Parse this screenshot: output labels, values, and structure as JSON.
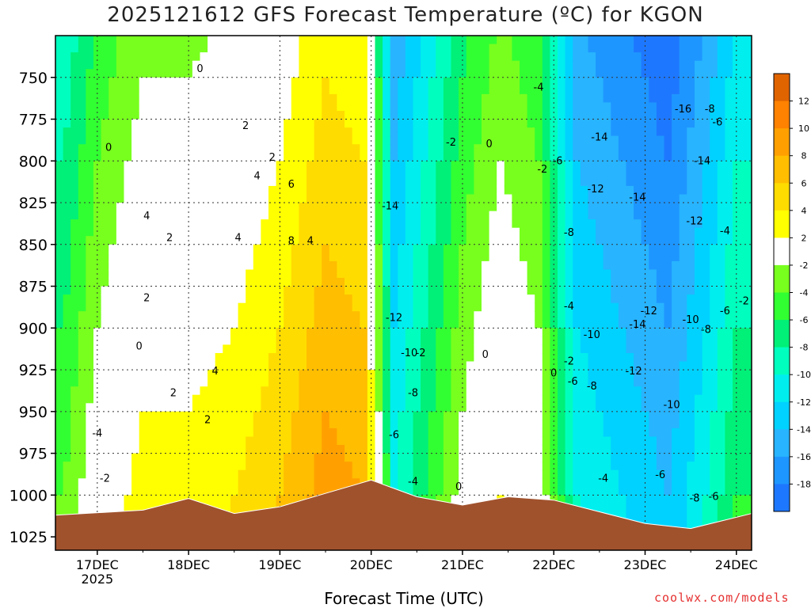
{
  "title": "2025121612 GFS Forecast Temperature (ºC) for KGON",
  "credit": "coolwx.com/models",
  "chart_data": {
    "type": "heatmap",
    "title": "2025121612 GFS Forecast Temperature (ºC) for KGON",
    "xlabel": "Forecast Time (UTC)",
    "ylabel": "",
    "x_ticks": [
      "17DEC",
      "18DEC",
      "19DEC",
      "20DEC",
      "21DEC",
      "22DEC",
      "23DEC",
      "24DEC"
    ],
    "x_year_label": "2025",
    "x_hours": [
      0,
      24,
      48,
      72,
      96,
      120,
      144,
      168
    ],
    "xlim_hours": [
      -11,
      172
    ],
    "y_ticks": [
      750,
      775,
      800,
      825,
      850,
      875,
      900,
      925,
      950,
      975,
      1000,
      1025
    ],
    "ylim": [
      725,
      1033
    ],
    "colorbar": {
      "bounds": [
        -20,
        -18,
        -16,
        -14,
        -12,
        -10,
        -8,
        -6,
        -4,
        -2,
        2,
        4,
        6,
        8,
        10,
        12,
        14
      ],
      "labels": [
        "12",
        "10",
        "8",
        "6",
        "4",
        "2",
        "-2",
        "-4",
        "-6",
        "-8",
        "-10",
        "-12",
        "-14",
        "-16",
        "-18"
      ],
      "colors": [
        "#1e78ff",
        "#1e96ff",
        "#28b4ff",
        "#00d2ff",
        "#00eeee",
        "#00ffbe",
        "#00f078",
        "#32ff32",
        "#78ff1e",
        "#ffffff",
        "#ffff00",
        "#ffdc00",
        "#ffbe00",
        "#ffa000",
        "#ff8200",
        "#e06400"
      ]
    },
    "temperature_profile_by_time": [
      {
        "hour": -9,
        "t": -4
      },
      {
        "hour": 0,
        "t": 0
      },
      {
        "hour": 12,
        "t": 3
      },
      {
        "hour": 24,
        "t": 3
      },
      {
        "hour": 36,
        "t": 4
      },
      {
        "hour": 48,
        "t": 6
      },
      {
        "hour": 60,
        "t": 9
      },
      {
        "hour": 70,
        "t": 8
      },
      {
        "hour": 78,
        "t": -10
      },
      {
        "hour": 86,
        "t": -6
      },
      {
        "hour": 96,
        "t": -1
      },
      {
        "hour": 106,
        "t": 2
      },
      {
        "hour": 116,
        "t": 0
      },
      {
        "hour": 126,
        "t": -10
      },
      {
        "hour": 138,
        "t": -12
      },
      {
        "hour": 150,
        "t": -14
      },
      {
        "hour": 160,
        "t": -10
      },
      {
        "hour": 168,
        "t": -6
      }
    ],
    "contour_labels": [
      {
        "label": "0",
        "hour": 3,
        "p": 792
      },
      {
        "label": "0",
        "hour": 27,
        "p": 745
      },
      {
        "label": "0",
        "hour": 11,
        "p": 911
      },
      {
        "label": "-2",
        "hour": 2,
        "p": 990
      },
      {
        "label": "-4",
        "hour": 0,
        "p": 963
      },
      {
        "label": "4",
        "hour": 13,
        "p": 833
      },
      {
        "label": "2",
        "hour": 19,
        "p": 846
      },
      {
        "label": "2",
        "hour": 13,
        "p": 882
      },
      {
        "label": "2",
        "hour": 39,
        "p": 779
      },
      {
        "label": "2",
        "hour": 46,
        "p": 798
      },
      {
        "label": "4",
        "hour": 42,
        "p": 809
      },
      {
        "label": "6",
        "hour": 51,
        "p": 814
      },
      {
        "label": "4",
        "hour": 37,
        "p": 846
      },
      {
        "label": "8",
        "hour": 51,
        "p": 848
      },
      {
        "label": "4",
        "hour": 56,
        "p": 848
      },
      {
        "label": "4",
        "hour": 31,
        "p": 926
      },
      {
        "label": "2",
        "hour": 20,
        "p": 939
      },
      {
        "label": "2",
        "hour": 29,
        "p": 955
      },
      {
        "label": "-14",
        "hour": 77,
        "p": 827
      },
      {
        "label": "-12",
        "hour": 78,
        "p": 894
      },
      {
        "label": "-10",
        "hour": 82,
        "p": 915
      },
      {
        "label": "-2",
        "hour": 85,
        "p": 915
      },
      {
        "label": "-8",
        "hour": 83,
        "p": 939
      },
      {
        "label": "-6",
        "hour": 78,
        "p": 964
      },
      {
        "label": "-4",
        "hour": 83,
        "p": 992
      },
      {
        "label": "0",
        "hour": 95,
        "p": 995
      },
      {
        "label": "0",
        "hour": 102,
        "p": 916
      },
      {
        "label": "-2",
        "hour": 93,
        "p": 789
      },
      {
        "label": "0",
        "hour": 103,
        "p": 790
      },
      {
        "label": "-4",
        "hour": 116,
        "p": 756
      },
      {
        "label": "-2",
        "hour": 117,
        "p": 805
      },
      {
        "label": "-6",
        "hour": 121,
        "p": 800
      },
      {
        "label": "-14",
        "hour": 132,
        "p": 786
      },
      {
        "label": "-12",
        "hour": 131,
        "p": 817
      },
      {
        "label": "-14",
        "hour": 142,
        "p": 822
      },
      {
        "label": "-8",
        "hour": 124,
        "p": 843
      },
      {
        "label": "-4",
        "hour": 124,
        "p": 887
      },
      {
        "label": "-10",
        "hour": 130,
        "p": 904
      },
      {
        "label": "-2",
        "hour": 124,
        "p": 920
      },
      {
        "label": "0",
        "hour": 120,
        "p": 927
      },
      {
        "label": "-6",
        "hour": 125,
        "p": 932
      },
      {
        "label": "-8",
        "hour": 130,
        "p": 935
      },
      {
        "label": "-14",
        "hour": 142,
        "p": 898
      },
      {
        "label": "-12",
        "hour": 145,
        "p": 890
      },
      {
        "label": "-12",
        "hour": 141,
        "p": 926
      },
      {
        "label": "-10",
        "hour": 151,
        "p": 946
      },
      {
        "label": "-4",
        "hour": 133,
        "p": 990
      },
      {
        "label": "-6",
        "hour": 148,
        "p": 988
      },
      {
        "label": "-16",
        "hour": 154,
        "p": 769
      },
      {
        "label": "-8",
        "hour": 161,
        "p": 769
      },
      {
        "label": "-6",
        "hour": 163,
        "p": 777
      },
      {
        "label": "-14",
        "hour": 159,
        "p": 800
      },
      {
        "label": "-12",
        "hour": 157,
        "p": 836
      },
      {
        "label": "-4",
        "hour": 165,
        "p": 842
      },
      {
        "label": "-10",
        "hour": 156,
        "p": 895
      },
      {
        "label": "-8",
        "hour": 160,
        "p": 901
      },
      {
        "label": "-6",
        "hour": 165,
        "p": 890
      },
      {
        "label": "-2",
        "hour": 170,
        "p": 884
      },
      {
        "label": "-8",
        "hour": 157,
        "p": 1002
      },
      {
        "label": "-6",
        "hour": 162,
        "p": 1001
      }
    ],
    "terrain_color": "#a0522d",
    "terrain_surface_pressure_by_time": [
      {
        "hour": -11,
        "p": 1012
      },
      {
        "hour": 12,
        "p": 1009
      },
      {
        "hour": 24,
        "p": 1002
      },
      {
        "hour": 36,
        "p": 1011
      },
      {
        "hour": 48,
        "p": 1007
      },
      {
        "hour": 60,
        "p": 999
      },
      {
        "hour": 72,
        "p": 991
      },
      {
        "hour": 84,
        "p": 1001
      },
      {
        "hour": 96,
        "p": 1006
      },
      {
        "hour": 108,
        "p": 1001
      },
      {
        "hour": 120,
        "p": 1003
      },
      {
        "hour": 132,
        "p": 1010
      },
      {
        "hour": 144,
        "p": 1017
      },
      {
        "hour": 156,
        "p": 1020
      },
      {
        "hour": 172,
        "p": 1011
      }
    ]
  }
}
